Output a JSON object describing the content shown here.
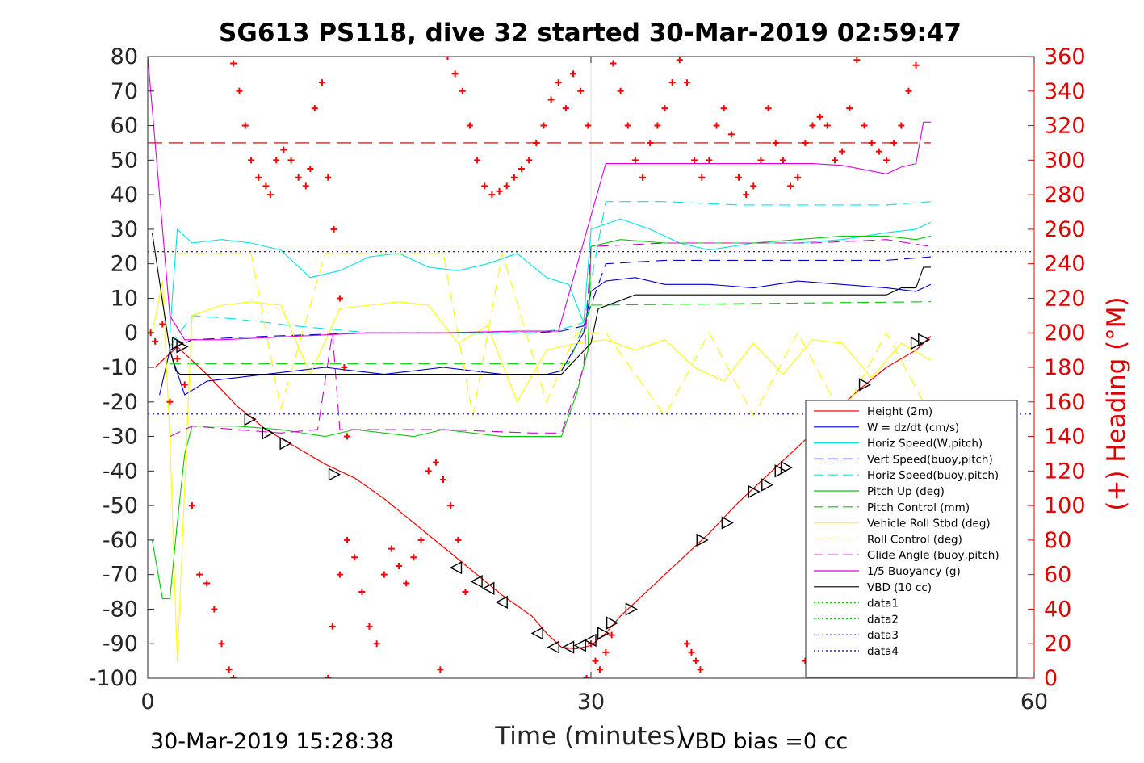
{
  "chart_data": {
    "type": "line",
    "title": "SG613 PS118, dive 32 started 30-Mar-2019 02:59:47",
    "xlabel": "Time (minutes)",
    "ylabel": "",
    "ylabel_right": "(+) Heading (°M)",
    "xlim": [
      0,
      60
    ],
    "ylim": [
      -100,
      80
    ],
    "ylim_right": [
      0,
      360
    ],
    "x_ticks": [
      0,
      30,
      60
    ],
    "y_ticks": [
      -100,
      -90,
      -80,
      -70,
      -60,
      -50,
      -40,
      -30,
      -20,
      -10,
      0,
      10,
      20,
      30,
      40,
      50,
      60,
      70,
      80
    ],
    "y_ticks_right": [
      0,
      20,
      40,
      60,
      80,
      100,
      120,
      140,
      160,
      180,
      200,
      220,
      240,
      260,
      280,
      300,
      320,
      340,
      360
    ],
    "grid": "vertical line at x=30",
    "legend_position": "bottom-right",
    "footer_left": "30-Mar-2019 15:28:38",
    "footer_right": "VBD bias =0 cc",
    "colors": {
      "height": "#ff0000",
      "w": "#0000cd",
      "horiz_speed_w": "#00e5e5",
      "pitch": "#00cc00",
      "roll": "#ffff00",
      "glide": "#cc00cc",
      "buoyancy": "#dd00dd",
      "vbd": "#000000",
      "heading": "#ff0000",
      "ref_red": "#b00000",
      "ref_blue": "#0000aa"
    },
    "series": [
      {
        "name": "Height (2m)",
        "style": "solid",
        "color_key": "height",
        "x": [
          0.5,
          2,
          4,
          6,
          8,
          10,
          12,
          14,
          16,
          18,
          20,
          22,
          24,
          26,
          27,
          28,
          29,
          30,
          31,
          32,
          34,
          36,
          38,
          40,
          42,
          44,
          46,
          48,
          50,
          52,
          53
        ],
        "y": [
          -10,
          -4,
          -12,
          -21,
          -28,
          -33,
          -38,
          -42,
          -48,
          -55,
          -62,
          -69,
          -76,
          -82,
          -87,
          -91,
          -91.5,
          -90.5,
          -87,
          -82,
          -74,
          -66,
          -58,
          -49,
          -41,
          -33,
          -25,
          -17,
          -10,
          -5,
          -1
        ]
      },
      {
        "name": "W = dz/dt (cm/s)",
        "style": "solid",
        "color_key": "w",
        "x": [
          0.8,
          1.5,
          2.5,
          4,
          6,
          8,
          10,
          12,
          14,
          16,
          18,
          20,
          22,
          24,
          26,
          27,
          28,
          29.5,
          30,
          31,
          33,
          35,
          38,
          41,
          44,
          47,
          50,
          52,
          53
        ],
        "y": [
          -18,
          -5,
          -18,
          -14,
          -13,
          -12,
          -11,
          -10,
          -11,
          -12,
          -11,
          -10,
          -11,
          -12,
          -12,
          -12,
          -11,
          0,
          12,
          15,
          16,
          14,
          14,
          13,
          15,
          14,
          13,
          12,
          14
        ]
      },
      {
        "name": "Horiz Speed(W,pitch)",
        "style": "solid",
        "color_key": "horiz_speed_w",
        "x": [
          1.5,
          2,
          3,
          5,
          7,
          9,
          11,
          13,
          15,
          17,
          19,
          21,
          23,
          25,
          27,
          28.5,
          29.5,
          30,
          32,
          34,
          36,
          38,
          41,
          44,
          47,
          50,
          52,
          53
        ],
        "y": [
          0,
          30,
          26,
          27,
          26,
          24,
          16,
          18,
          22,
          23,
          19,
          18,
          20,
          23,
          16,
          14,
          3,
          30,
          33,
          30,
          26,
          24,
          26,
          26,
          27,
          29,
          30,
          32
        ]
      },
      {
        "name": "Vert Speed(buoy,pitch)",
        "style": "dashed",
        "color_key": "w",
        "x": [
          1.5,
          3,
          8,
          15,
          20,
          26,
          28,
          29.5,
          31,
          35,
          40,
          45,
          50,
          53
        ],
        "y": [
          -5,
          -2,
          -1,
          0,
          0,
          0,
          0.5,
          2,
          20,
          21,
          21,
          21,
          21,
          22
        ]
      },
      {
        "name": "Horiz Speed(buoy,pitch)",
        "style": "dashed",
        "color_key": "horiz_speed_w",
        "x": [
          1.5,
          3,
          6,
          10,
          15,
          20,
          26,
          28,
          29.5,
          31,
          35,
          40,
          45,
          50,
          53
        ],
        "y": [
          -4,
          5,
          4,
          2,
          0,
          0,
          0,
          1,
          3,
          38,
          38,
          37,
          37,
          37,
          38
        ]
      },
      {
        "name": "Pitch Up (deg)",
        "style": "solid",
        "color_key": "pitch",
        "x": [
          0.3,
          1,
          1.5,
          2,
          2.5,
          3,
          6,
          9,
          12,
          14,
          16,
          18,
          20,
          22,
          24,
          26,
          28,
          29,
          29.8,
          30,
          32,
          35,
          38,
          41,
          44,
          47,
          50,
          52,
          53
        ],
        "y": [
          -60,
          -77,
          -77,
          -55,
          -35,
          -27,
          -27,
          -28,
          -30,
          -28,
          -29,
          -30,
          -28,
          -29,
          -30,
          -30,
          -30,
          -18,
          -5,
          25,
          27,
          26,
          26,
          26,
          27,
          28,
          28,
          27,
          28
        ]
      },
      {
        "name": "Pitch Control (mm)",
        "style": "dashed",
        "color_key": "pitch",
        "x": [
          1.5,
          28.5,
          30,
          53
        ],
        "y": [
          -9,
          -9,
          8,
          9
        ]
      },
      {
        "name": "Vehicle Roll Stbd (deg)",
        "style": "solid",
        "color_key": "roll",
        "x": [
          0.3,
          1,
          1.5,
          2,
          3,
          5,
          7,
          9,
          11,
          13,
          15,
          17,
          19,
          21,
          23,
          25,
          27,
          29,
          31,
          33,
          35,
          37,
          39,
          41,
          43,
          45,
          47,
          49,
          51,
          53
        ],
        "y": [
          0,
          15,
          -30,
          -95,
          5,
          8,
          9,
          8,
          -12,
          7,
          8,
          9,
          8,
          -3,
          2,
          -20,
          -5,
          -3,
          -2,
          -5,
          -2,
          -10,
          -14,
          -3,
          -12,
          -2,
          -3,
          -13,
          -3,
          -8
        ]
      },
      {
        "name": "Roll Control (deg)",
        "style": "dashed",
        "color_key": "roll",
        "x": [
          2,
          7,
          9,
          12,
          16,
          20,
          22,
          24,
          27,
          29,
          31,
          35,
          38,
          41,
          44,
          47,
          50,
          53
        ],
        "y": [
          23,
          23,
          -22,
          23,
          23,
          23,
          -24,
          23,
          -20,
          0,
          0,
          -24,
          0,
          -24,
          0,
          -24,
          0,
          -24
        ]
      },
      {
        "name": "Glide Angle (buoy,pitch)",
        "style": "dashed",
        "color_key": "glide",
        "x": [
          1.5,
          3,
          6,
          9,
          11.5,
          12.5,
          13,
          15,
          20,
          26,
          28,
          29.5,
          30,
          35,
          40,
          45,
          50,
          53
        ],
        "y": [
          -30,
          -27,
          -28,
          -29,
          -28,
          0,
          -28,
          -28,
          -28,
          -29,
          -29,
          -10,
          25,
          26,
          26,
          26,
          27,
          25
        ]
      },
      {
        "name": "1/5 Buoyancy (g)",
        "style": "solid",
        "color_key": "buoyancy",
        "x": [
          0,
          0.5,
          1.5,
          2.5,
          5,
          10,
          15,
          20,
          25,
          27.8,
          31,
          35,
          40,
          45,
          47,
          50,
          51,
          52,
          52.5,
          53
        ],
        "y": [
          80,
          55,
          5,
          -2,
          -2,
          -1,
          0,
          0,
          0.5,
          0.5,
          49,
          49,
          49,
          49,
          48.5,
          46,
          48,
          49,
          61,
          61
        ]
      },
      {
        "name": "VBD (10 cc)",
        "style": "solid",
        "color_key": "vbd",
        "x": [
          0.3,
          1.5,
          1.9,
          2.2,
          27.5,
          28,
          30,
          30.5,
          33,
          50,
          51,
          52,
          52.5,
          53
        ],
        "y": [
          29,
          -5,
          -11,
          -12,
          -12,
          -12,
          -3,
          7,
          11,
          11,
          13,
          13,
          19,
          19
        ]
      },
      {
        "name": "data1",
        "style": "dotted",
        "color_key": "pitch",
        "x": [],
        "y": []
      },
      {
        "name": "data2",
        "style": "dotted",
        "color_key": "pitch",
        "x": [],
        "y": []
      },
      {
        "name": "data3",
        "style": "dotted",
        "color_key": "ref_blue",
        "x": [
          0,
          60
        ],
        "y": [
          23.5,
          23.5
        ]
      },
      {
        "name": "data4",
        "style": "dotted",
        "color_key": "ref_blue",
        "x": [
          0,
          60
        ],
        "y": [
          -23.5,
          -23.5
        ]
      }
    ],
    "reference_line_red": {
      "x": [
        0,
        53
      ],
      "y": [
        55,
        55
      ]
    },
    "heading_points": {
      "x": [
        0.2,
        0.5,
        1,
        1.5,
        2,
        2.5,
        3,
        3.5,
        4,
        4.5,
        5,
        5.5,
        5.8,
        5.8,
        6.2,
        6.6,
        7,
        7.5,
        8,
        8.3,
        8.7,
        9.2,
        9.7,
        10.2,
        10.7,
        11,
        11.3,
        11.8,
        12.2,
        12.6,
        13,
        13.3,
        13.5,
        12.2,
        12.5,
        13,
        13.5,
        14,
        14.5,
        15,
        15.5,
        16,
        16.5,
        17,
        17.5,
        18,
        18.5,
        19,
        19.5,
        20,
        20.5,
        21,
        21.5,
        19.8,
        20.3,
        20.8,
        21.3,
        21.8,
        22.3,
        22.8,
        23.3,
        23.8,
        24.3,
        24.8,
        25.3,
        25.8,
        26.3,
        26.8,
        27.3,
        27.8,
        28.3,
        28.8,
        29.3,
        29.8,
        29.7,
        30,
        30.3,
        30.6,
        31,
        31.4,
        31.5,
        32,
        32.5,
        33,
        33.5,
        34,
        34.5,
        35,
        35.5,
        36,
        36.5,
        37,
        37.5,
        38,
        38.5,
        39,
        39.5,
        40,
        40.5,
        41,
        41.5,
        42,
        42.5,
        43,
        43.5,
        44,
        44.5,
        45,
        45.5,
        46,
        46.5,
        47,
        47.5,
        48,
        48.5,
        49,
        49.5,
        50,
        50.5,
        51,
        51.5,
        52,
        36.5,
        36.8,
        37.1,
        37.4,
        44.5,
        44.8,
        48,
        51.5
      ],
      "y": [
        200,
        195,
        205,
        160,
        185,
        170,
        100,
        60,
        55,
        40,
        20,
        5,
        0,
        356,
        340,
        320,
        300,
        290,
        285,
        280,
        300,
        306,
        300,
        290,
        285,
        295,
        330,
        345,
        290,
        260,
        220,
        180,
        140,
        0,
        30,
        60,
        80,
        70,
        50,
        30,
        20,
        60,
        75,
        65,
        55,
        70,
        80,
        120,
        125,
        115,
        100,
        80,
        50,
        5,
        360,
        350,
        340,
        320,
        300,
        285,
        280,
        282,
        285,
        290,
        295,
        300,
        310,
        320,
        335,
        345,
        330,
        350,
        340,
        320,
        0,
        20,
        10,
        5,
        15,
        25,
        356,
        340,
        320,
        300,
        290,
        310,
        320,
        330,
        345,
        358,
        345,
        300,
        290,
        300,
        320,
        330,
        315,
        290,
        280,
        285,
        300,
        330,
        310,
        300,
        285,
        290,
        310,
        320,
        325,
        320,
        300,
        305,
        330,
        358,
        320,
        310,
        305,
        300,
        310,
        320,
        340,
        355,
        20,
        15,
        10,
        5,
        10,
        5,
        10,
        5
      ]
    },
    "dive_markers": {
      "x": [
        2.0,
        2.3,
        6.9,
        8.1,
        9.3,
        12.6,
        20.9,
        22.3,
        23.1,
        24.0,
        26.4,
        27.5,
        28.5,
        29.3,
        30.0,
        30.8,
        31.4,
        32.7,
        37.5,
        39.2,
        41.0,
        41.9,
        42.8,
        43.2,
        48.5,
        52.0,
        52.5
      ],
      "y": [
        -3,
        -4,
        -25,
        -29,
        -32,
        -41,
        -68,
        -72,
        -74,
        -78,
        -87,
        -91,
        -91,
        -90.5,
        -89,
        -87,
        -84,
        -80,
        -60,
        -55,
        -46,
        -44,
        -40,
        -39,
        -15,
        -3,
        -2
      ]
    }
  }
}
